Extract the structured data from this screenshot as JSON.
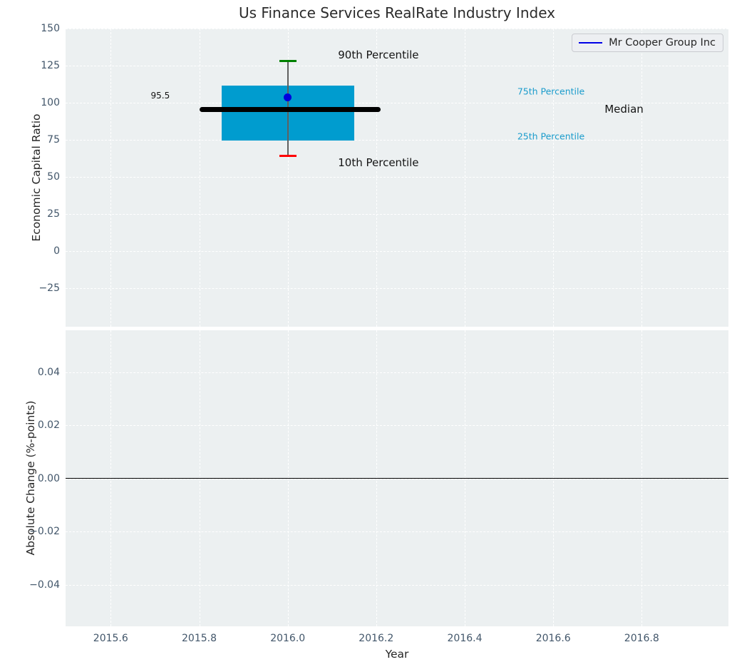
{
  "title": "Us Finance Services RealRate Industry Index",
  "colors": {
    "axes_bg": "#ecf0f1",
    "grid": "#ffffff",
    "box_fill": "#009ccf",
    "p90_cap": "#008000",
    "p10_cap": "#ff0000",
    "company_dot": "#0000dd",
    "median_line": "#000000",
    "whisker": "#606060",
    "tick_text": "#42566a",
    "annotation_cyan": "#1b9ccc",
    "legend_line": "#0000e6"
  },
  "chart_data": {
    "type": "box",
    "title": "Us Finance Services RealRate Industry Index",
    "legend": {
      "position": "upper right",
      "entries": [
        {
          "label": "Mr Cooper Group Inc",
          "color": "#0000e6"
        }
      ]
    },
    "x_axis": {
      "label": "Year",
      "lim": [
        2015.498,
        2016.996
      ],
      "ticks": [
        {
          "v": 2015.6,
          "label": "2015.6"
        },
        {
          "v": 2015.8,
          "label": "2015.8"
        },
        {
          "v": 2016.0,
          "label": "2016.0"
        },
        {
          "v": 2016.2,
          "label": "2016.2"
        },
        {
          "v": 2016.4,
          "label": "2016.4"
        },
        {
          "v": 2016.6,
          "label": "2016.6"
        },
        {
          "v": 2016.8,
          "label": "2016.8"
        }
      ]
    },
    "top_panel": {
      "ylabel": "Economic Capital Ratio",
      "ylim": [
        -51,
        150
      ],
      "grid": true,
      "yticks": [
        {
          "v": 150,
          "label": "150"
        },
        {
          "v": 125,
          "label": "125"
        },
        {
          "v": 100,
          "label": "100"
        },
        {
          "v": 75,
          "label": "75"
        },
        {
          "v": 50,
          "label": "50"
        },
        {
          "v": 25,
          "label": "25"
        },
        {
          "v": 0,
          "label": "0"
        },
        {
          "v": -25,
          "label": "−25"
        }
      ],
      "box": {
        "x_center": 2016.0,
        "box_left": 2015.85,
        "box_right": 2016.15,
        "p10": 64,
        "p25": 74.5,
        "median": 95.5,
        "p75": 111.5,
        "p90": 128,
        "company_value": 103.5,
        "median_line_left": 2015.8,
        "median_line_right": 2016.21
      },
      "annotations": [
        {
          "text": "90th Percentile",
          "x": 2016.205,
          "y": 132,
          "cls": "annot-dark"
        },
        {
          "text": "10th Percentile",
          "x": 2016.205,
          "y": 59.5,
          "cls": "annot-dark"
        },
        {
          "text": "75th Percentile",
          "x": 2016.595,
          "y": 107.8,
          "cls": "annot-cyan"
        },
        {
          "text": "25th Percentile",
          "x": 2016.595,
          "y": 77.3,
          "cls": "annot-cyan"
        },
        {
          "text": "Median",
          "x": 2016.76,
          "y": 95.8,
          "cls": "annot-dark"
        },
        {
          "text": "95.5",
          "x": 2015.712,
          "y": 104.6,
          "cls": "annot-small"
        }
      ]
    },
    "bottom_panel": {
      "ylabel": "Absolute Change (%-points)",
      "ylim": [
        -0.0557,
        0.0557
      ],
      "grid": true,
      "yticks": [
        {
          "v": 0.04,
          "label": "0.04"
        },
        {
          "v": 0.02,
          "label": "0.02"
        },
        {
          "v": 0.0,
          "label": "0.00"
        },
        {
          "v": -0.02,
          "label": "−0.02"
        },
        {
          "v": -0.04,
          "label": "−0.04"
        }
      ],
      "zero_line": 0.0
    }
  }
}
